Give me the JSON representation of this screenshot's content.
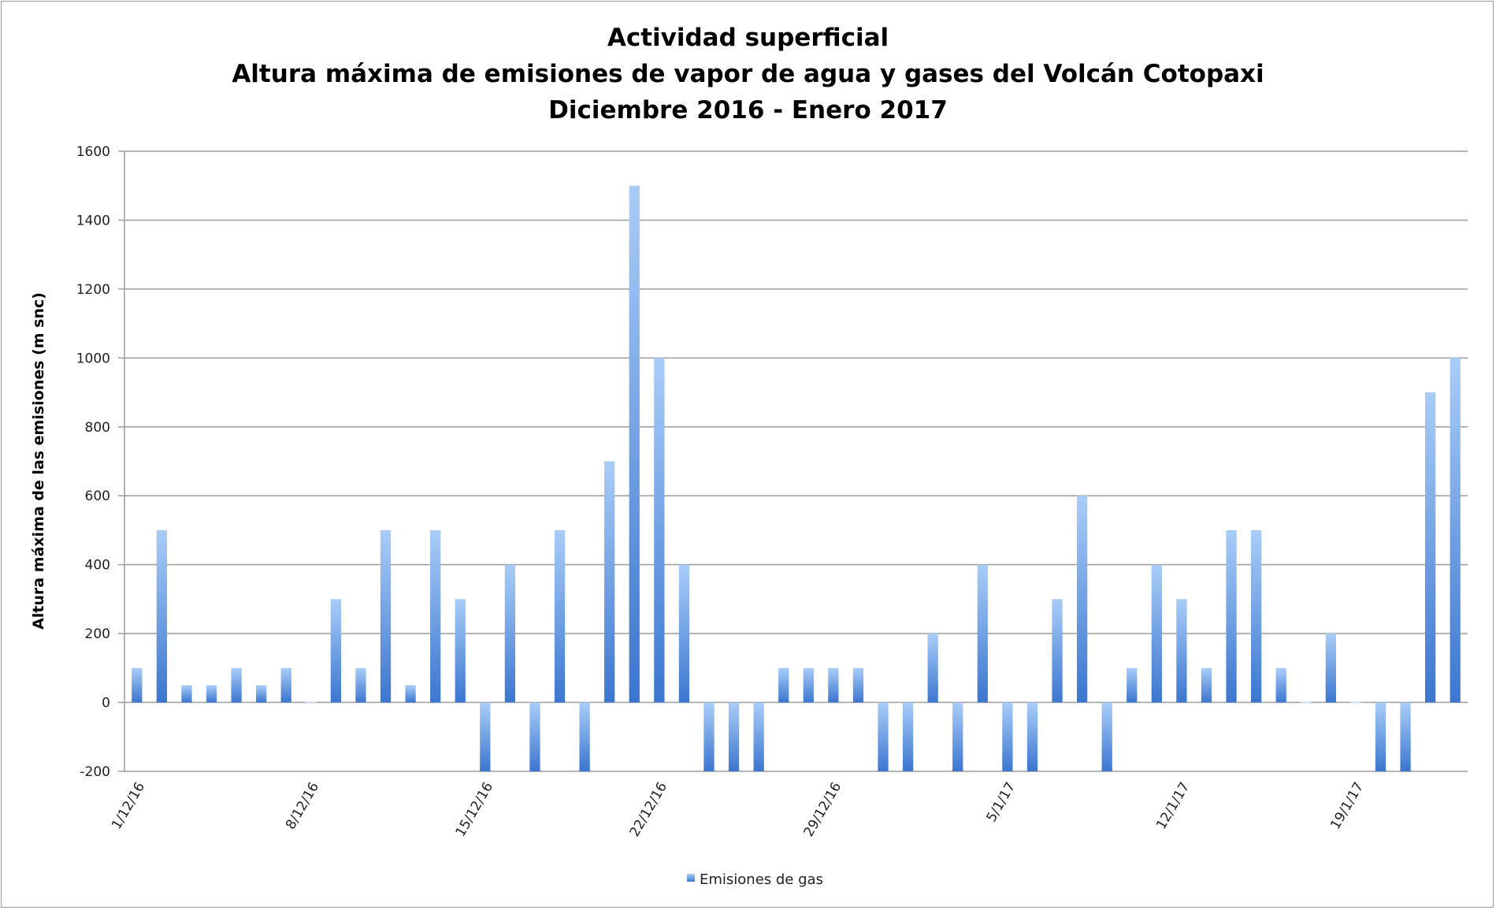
{
  "chart_data": {
    "type": "bar",
    "title_lines": [
      "Actividad superficial",
      "Altura máxima de emisiones de vapor de agua y gases del Volcán Cotopaxi",
      "Diciembre 2016 - Enero 2017"
    ],
    "ylabel": "Altura máxima de las emisiones (m snc)",
    "xlabel": "",
    "ylim": [
      -200,
      1600
    ],
    "yticks": [
      -200,
      0,
      200,
      400,
      600,
      800,
      1000,
      1200,
      1400,
      1600
    ],
    "grid": true,
    "legend_position": "bottom-center",
    "x_tick_labels": [
      {
        "index": 0,
        "label": "1/12/16"
      },
      {
        "index": 7,
        "label": "8/12/16"
      },
      {
        "index": 14,
        "label": "15/12/16"
      },
      {
        "index": 21,
        "label": "22/12/16"
      },
      {
        "index": 28,
        "label": "29/12/16"
      },
      {
        "index": 35,
        "label": "5/1/17"
      },
      {
        "index": 42,
        "label": "12/1/17"
      },
      {
        "index": 49,
        "label": "19/1/17"
      }
    ],
    "series": [
      {
        "name": "Emisiones de gas",
        "color": "#4f87d6",
        "values": [
          100,
          500,
          50,
          50,
          100,
          50,
          100,
          0,
          300,
          100,
          500,
          50,
          500,
          300,
          -200,
          400,
          -200,
          500,
          -200,
          700,
          1500,
          1000,
          400,
          -200,
          -200,
          -200,
          100,
          100,
          100,
          100,
          -200,
          -200,
          200,
          -200,
          400,
          -200,
          -200,
          300,
          600,
          -200,
          100,
          400,
          300,
          100,
          500,
          500,
          100,
          0,
          200,
          0,
          -200,
          -200,
          900,
          1000
        ]
      }
    ]
  }
}
